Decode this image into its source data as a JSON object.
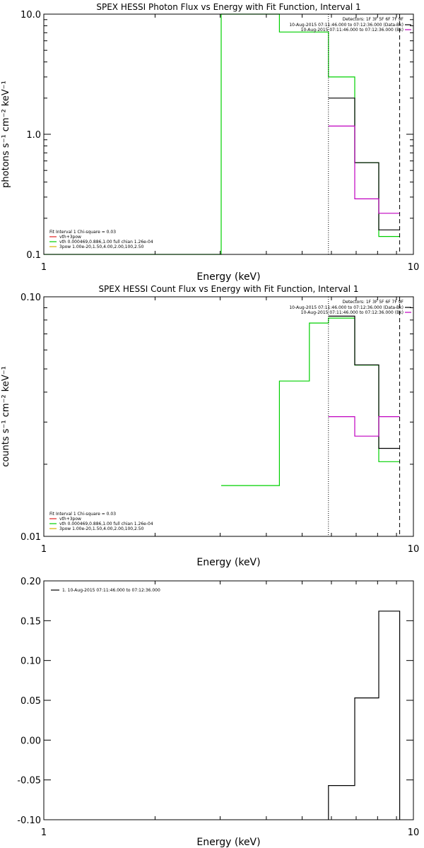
{
  "chart_data": [
    {
      "type": "line",
      "title": "SPEX HESSI Photon Flux vs Energy with Fit Function, Interval 1",
      "xlabel": "Energy (keV)",
      "ylabel": "photons s⁻¹ cm⁻² keV⁻¹",
      "x_scale": "log",
      "y_scale": "log",
      "xlim": [
        1,
        10
      ],
      "ylim": [
        0.1,
        10
      ],
      "x_ticks": [
        {
          "value": 1,
          "label": "1"
        },
        {
          "value": 10,
          "label": "10"
        }
      ],
      "y_ticks": [
        {
          "value": 0.1,
          "label": "0.1"
        },
        {
          "value": 1,
          "label": "1.0"
        },
        {
          "value": 10,
          "label": "10.0"
        }
      ],
      "legend_top": {
        "header": "Detectors: 1F 3F 5F 6F 7F 9F",
        "entries": [
          {
            "label": "10-Aug-2015 07:11:46.000 to 07:12:36.000 (Data-Bk)",
            "color": "#000000"
          },
          {
            "label": "10-Aug-2015 07:11:46.000 to 07:12:36.000 (Bk)",
            "color": "#c000c0"
          }
        ]
      },
      "legend_bottom": [
        {
          "label": "Fit Interval 1   Chi-square = 0.03",
          "color": ""
        },
        {
          "label": "vth+3pow",
          "color": "#e02020"
        },
        {
          "label": "vth 0.000469,0.886,1.00  full chian 1.26e-04",
          "color": "#00d000"
        },
        {
          "label": "3pow 1.00e-20,1.50,4.00,2.00,100,2.50",
          "color": "#d8b000"
        }
      ],
      "vlines": [
        {
          "x": 5.89,
          "style": "dotted",
          "color": "#000000"
        },
        {
          "x": 9.18,
          "style": "dashed",
          "color": "#000000"
        }
      ],
      "series": [
        {
          "color": "#00d000",
          "edges": [
            1,
            3.02,
            4.34,
            5.89,
            6.94,
            8.06,
            9.18
          ],
          "values": [
            0.1,
            10,
            7.1,
            3.0,
            0.58,
            0.141
          ]
        },
        {
          "color": "#000000",
          "edges": [
            5.89,
            6.94,
            8.06,
            9.18
          ],
          "values": [
            2.0,
            0.58,
            0.16
          ]
        },
        {
          "color": "#c000c0",
          "edges": [
            5.89,
            6.94,
            8.06,
            9.18
          ],
          "values": [
            1.17,
            0.29,
            0.22
          ]
        }
      ]
    },
    {
      "type": "line",
      "title": "SPEX HESSI Count Flux vs Energy with Fit Function, Interval 1",
      "xlabel": "Energy (keV)",
      "ylabel": "counts s⁻¹ cm⁻² keV⁻¹",
      "x_scale": "log",
      "y_scale": "log",
      "xlim": [
        1,
        10
      ],
      "ylim": [
        0.01,
        0.1
      ],
      "x_ticks": [
        {
          "value": 1,
          "label": "1"
        },
        {
          "value": 10,
          "label": "10"
        }
      ],
      "y_ticks": [
        {
          "value": 0.01,
          "label": "0.01"
        },
        {
          "value": 0.1,
          "label": "0.10"
        }
      ],
      "legend_top": {
        "header": "Detectors: 1F 3F 5F 6F 7F 9F",
        "entries": [
          {
            "label": "10-Aug-2015 07:11:46.000 to 07:12:36.000 (Data-Bk)",
            "color": "#000000"
          },
          {
            "label": "10-Aug-2015 07:11:46.000 to 07:12:36.000 (Bk)",
            "color": "#c000c0"
          }
        ]
      },
      "legend_bottom": [
        {
          "label": "Fit Interval 1   Chi-square = 0.03",
          "color": ""
        },
        {
          "label": "vth+3pow",
          "color": "#e02020"
        },
        {
          "label": "vth 0.000469,0.886,1.00  full chian 1.26e-04",
          "color": "#00d000"
        },
        {
          "label": "3pow 1.00e-20,1.50,4.00,2.00,100,2.50",
          "color": "#d8b000"
        }
      ],
      "vlines": [
        {
          "x": 5.89,
          "style": "dotted",
          "color": "#000000"
        },
        {
          "x": 9.18,
          "style": "dashed",
          "color": "#000000"
        }
      ],
      "series": [
        {
          "color": "#00d000",
          "edges": [
            3.02,
            4.34,
            5.23,
            5.89,
            6.94,
            8.06,
            9.18
          ],
          "values": [
            0.0163,
            0.0445,
            0.0777,
            0.0815,
            0.0519,
            0.0205
          ]
        },
        {
          "color": "#000000",
          "edges": [
            5.89,
            6.94,
            8.06,
            9.18
          ],
          "values": [
            0.083,
            0.052,
            0.0233
          ]
        },
        {
          "color": "#c000c0",
          "edges": [
            5.89,
            6.94,
            8.06,
            9.18
          ],
          "values": [
            0.0316,
            0.0262,
            0.0316
          ]
        }
      ]
    },
    {
      "type": "line",
      "title": "",
      "xlabel": "Energy (keV)",
      "ylabel": "",
      "x_scale": "log",
      "y_scale": "linear",
      "xlim": [
        1,
        10
      ],
      "ylim": [
        -0.1,
        0.2
      ],
      "x_ticks": [
        {
          "value": 1,
          "label": "1"
        },
        {
          "value": 10,
          "label": "10"
        }
      ],
      "y_ticks": [
        {
          "value": -0.1,
          "label": "-0.10"
        },
        {
          "value": -0.05,
          "label": "-0.05"
        },
        {
          "value": 0,
          "label": "0.00"
        },
        {
          "value": 0.05,
          "label": "0.05"
        },
        {
          "value": 0.1,
          "label": "0.10"
        },
        {
          "value": 0.15,
          "label": "0.15"
        },
        {
          "value": 0.2,
          "label": "0.20"
        }
      ],
      "legend_top_left": [
        {
          "label": "1. 10-Aug-2015 07:11:46.000 to 07:12:36.000",
          "color": "#000000"
        }
      ],
      "series": [
        {
          "color": "#000000",
          "edges": [
            5.89,
            6.94,
            8.06,
            9.18
          ],
          "values": [
            -0.057,
            0.053,
            0.162
          ],
          "baseline": -0.1
        }
      ]
    }
  ]
}
